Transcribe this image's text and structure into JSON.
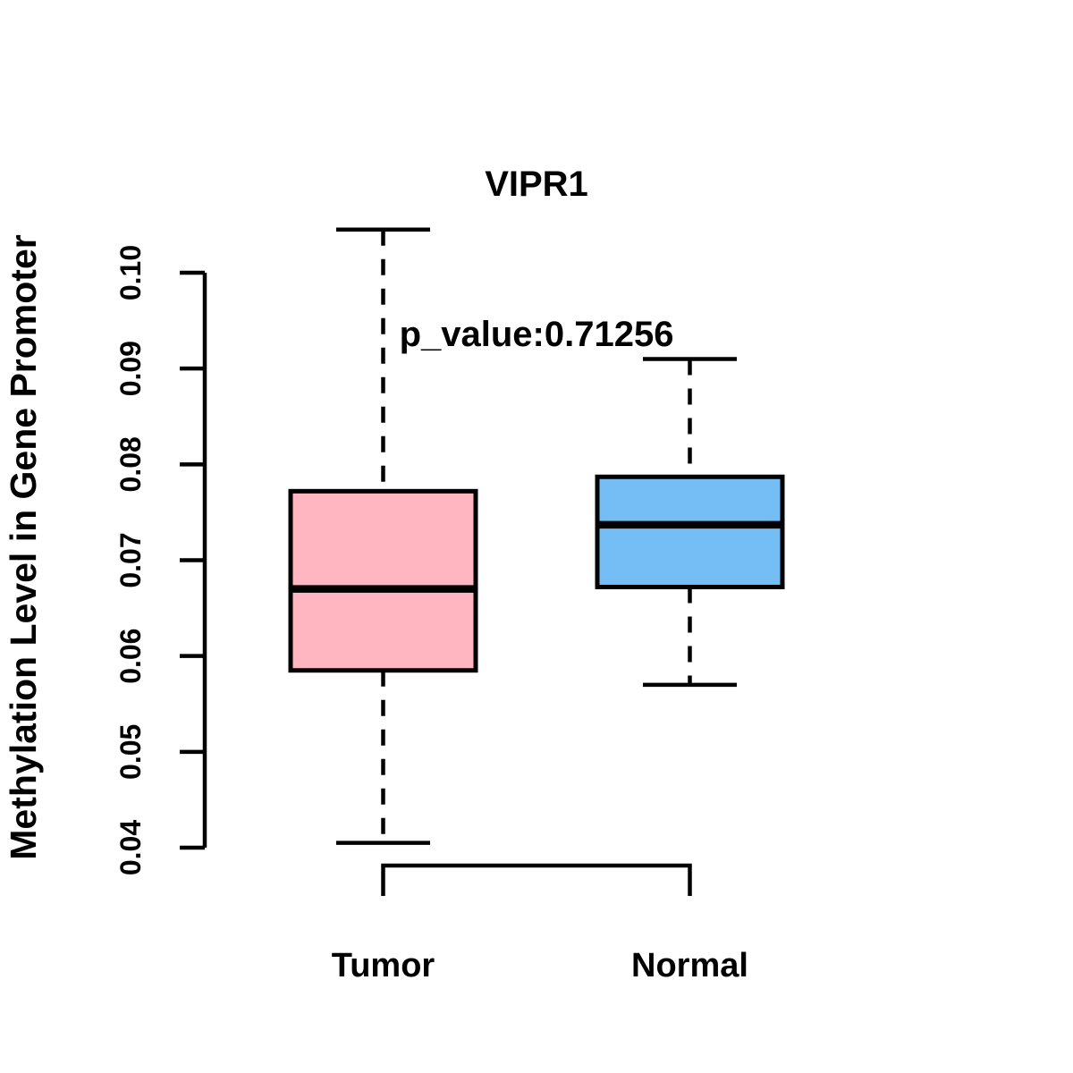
{
  "chart_data": {
    "type": "boxplot",
    "title": "VIPR1",
    "subtitle": "p_value:0.71256",
    "ylabel": "Methylation Level in Gene Promoter",
    "xlabel": "",
    "ylim": [
      0.04,
      0.105
    ],
    "yticks": [
      0.04,
      0.05,
      0.06,
      0.07,
      0.08,
      0.09,
      0.1
    ],
    "ytick_labels": [
      "0.04",
      "0.05",
      "0.06",
      "0.07",
      "0.08",
      "0.09",
      "0.10"
    ],
    "grid": false,
    "legend": "none",
    "categories": [
      "Tumor",
      "Normal"
    ],
    "groups": [
      {
        "label": "Tumor",
        "fill_color": "#FFB6C1",
        "whisker_low": 0.0405,
        "q1": 0.0585,
        "median": 0.067,
        "q3": 0.0772,
        "whisker_high": 0.1045,
        "outliers": []
      },
      {
        "label": "Normal",
        "fill_color": "#74BEF5",
        "whisker_low": 0.057,
        "q1": 0.0672,
        "median": 0.0737,
        "q3": 0.0787,
        "whisker_high": 0.091,
        "outliers": []
      }
    ],
    "stroke_color": "#000000",
    "background_color": "#FFFFFF"
  }
}
